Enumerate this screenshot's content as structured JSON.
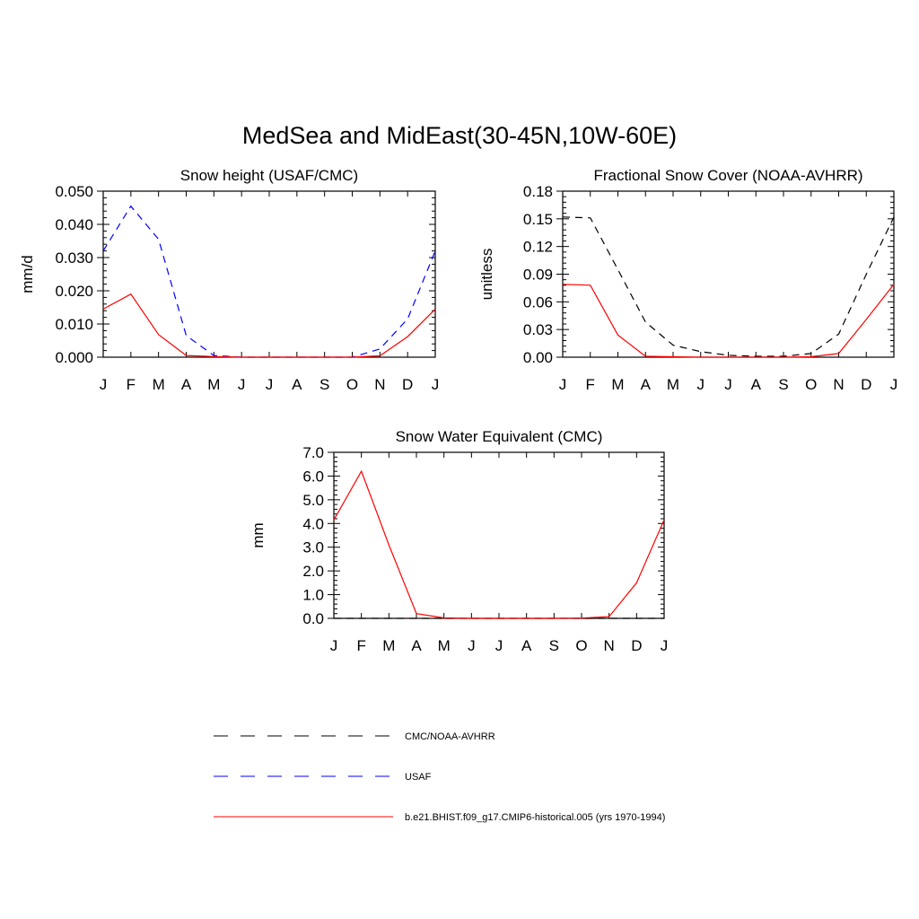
{
  "title": "MedSea and MidEast(30-45N,10W-60E)",
  "chart_data": [
    {
      "id": "snow-height",
      "type": "line",
      "title": "Snow height (USAF/CMC)",
      "xlabel": "",
      "ylabel": "mm/d",
      "categories": [
        "J",
        "F",
        "M",
        "A",
        "M",
        "J",
        "J",
        "A",
        "S",
        "O",
        "N",
        "D",
        "J"
      ],
      "yticks": [
        "0.000",
        "0.010",
        "0.020",
        "0.030",
        "0.040",
        "0.050"
      ],
      "ylim": [
        0,
        0.05
      ],
      "series": [
        {
          "name": "USAF",
          "color": "#0000ff",
          "dash": "dashed",
          "values": [
            0.032,
            0.0455,
            0.0355,
            0.0065,
            0.0005,
            0,
            0,
            0,
            0,
            0,
            0.0025,
            0.0115,
            0.032
          ]
        },
        {
          "name": "b.e21.BHIST.f09_g17.CMIP6-historical.005 (yrs 1970-1994)",
          "color": "#ff0000",
          "dash": "solid",
          "values": [
            0.0145,
            0.019,
            0.0068,
            0.0005,
            0.0002,
            0,
            0,
            0,
            0,
            0,
            0.0004,
            0.0062,
            0.0145
          ]
        }
      ]
    },
    {
      "id": "snow-cover",
      "type": "line",
      "title": "Fractional Snow Cover (NOAA-AVHRR)",
      "xlabel": "",
      "ylabel": "unitless",
      "categories": [
        "J",
        "F",
        "M",
        "A",
        "M",
        "J",
        "J",
        "A",
        "S",
        "O",
        "N",
        "D",
        "J"
      ],
      "yticks": [
        "0.00",
        "0.03",
        "0.06",
        "0.09",
        "0.12",
        "0.15",
        "0.18"
      ],
      "ylim": [
        0,
        0.18
      ],
      "series": [
        {
          "name": "CMC/NOAA-AVHRR",
          "color": "#000000",
          "dash": "dashed",
          "values": [
            0.152,
            0.151,
            0.095,
            0.038,
            0.013,
            0.006,
            0.002,
            0.001,
            0.001,
            0.004,
            0.025,
            0.09,
            0.152
          ]
        },
        {
          "name": "b.e21.BHIST.f09_g17.CMIP6-historical.005 (yrs 1970-1994)",
          "color": "#ff0000",
          "dash": "solid",
          "values": [
            0.079,
            0.078,
            0.024,
            0.001,
            0.0005,
            0,
            0,
            0,
            0,
            0.0005,
            0.004,
            0.041,
            0.079
          ]
        }
      ]
    },
    {
      "id": "swe",
      "type": "line",
      "title": "Snow Water Equivalent (CMC)",
      "xlabel": "",
      "ylabel": "mm",
      "categories": [
        "J",
        "F",
        "M",
        "A",
        "M",
        "J",
        "J",
        "A",
        "S",
        "O",
        "N",
        "D",
        "J"
      ],
      "yticks": [
        "0.0",
        "1.0",
        "2.0",
        "3.0",
        "4.0",
        "5.0",
        "6.0",
        "7.0"
      ],
      "ylim": [
        0,
        7
      ],
      "series": [
        {
          "name": "CMC/NOAA-AVHRR",
          "color": "#000000",
          "dash": "dashed",
          "values": [
            0,
            0,
            0,
            0,
            0,
            0,
            0,
            0,
            0,
            0,
            0,
            0,
            0
          ]
        },
        {
          "name": "b.e21.BHIST.f09_g17.CMIP6-historical.005 (yrs 1970-1994)",
          "color": "#ff0000",
          "dash": "solid",
          "values": [
            4.15,
            6.2,
            3.1,
            0.2,
            0.02,
            0,
            0,
            0,
            0,
            0.01,
            0.07,
            1.5,
            4.15
          ]
        }
      ]
    }
  ],
  "legend": [
    {
      "label": "CMC/NOAA-AVHRR",
      "color": "#000000",
      "dash": "dashed"
    },
    {
      "label": "USAF",
      "color": "#0000ff",
      "dash": "dashed"
    },
    {
      "label": "b.e21.BHIST.f09_g17.CMIP6-historical.005 (yrs 1970-1994)",
      "color": "#ff0000",
      "dash": "solid"
    }
  ]
}
